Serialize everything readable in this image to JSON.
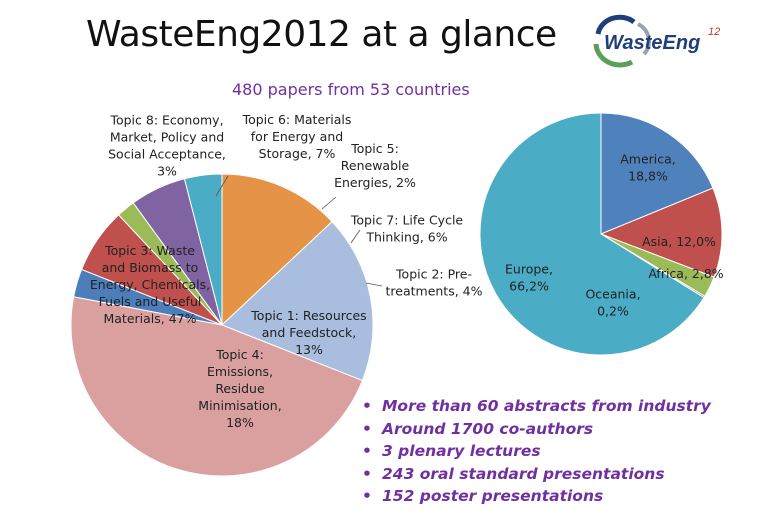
{
  "page": {
    "title": "WasteEng2012 at a glance",
    "subtitle": "480 papers from 53 countries",
    "logo": {
      "name": "WasteEng",
      "superscript": "12"
    },
    "bullets": [
      "More than 60 abstracts from industry",
      "Around 1700 co-authors",
      "3 plenary lectures",
      "243 oral standard presentations",
      "152 poster presentations"
    ],
    "bullet_symbol": "•"
  },
  "chart_data": [
    {
      "type": "pie",
      "title": "",
      "slices": [
        {
          "label": [
            "Topic 1: Resources",
            "and Feedstock,",
            "13%"
          ],
          "value": 13,
          "color": "#e59447"
        },
        {
          "label": [
            "Topic 4:",
            "Emissions,",
            "Residue",
            "Minimisation,",
            "18%"
          ],
          "value": 18,
          "color": "#a9bddf"
        },
        {
          "label": [
            "Topic 3: Waste",
            "and Biomass to",
            "Energy, Chemicals,",
            "Fuels and Useful",
            "Materials, 47%"
          ],
          "value": 47,
          "color": "#d9a09f"
        },
        {
          "label": [
            "Topic 8: Economy,",
            "Market, Policy and",
            "Social Acceptance,",
            "3%"
          ],
          "value": 3,
          "color": "#4d7ebc"
        },
        {
          "label": [
            "Topic 6: Materials",
            "for Energy and",
            "Storage, 7%"
          ],
          "value": 7,
          "color": "#c0504d"
        },
        {
          "label": [
            "Topic 5:",
            "Renewable",
            "Energies, 2%"
          ],
          "value": 2,
          "color": "#9bbb59"
        },
        {
          "label": [
            "Topic 7: Life Cycle",
            "Thinking, 6%"
          ],
          "value": 6,
          "color": "#8064a2"
        },
        {
          "label": [
            "Topic 2: Pre-",
            "treatments, 4%"
          ],
          "value": 4,
          "color": "#4bacc6"
        }
      ]
    },
    {
      "type": "pie",
      "title": "",
      "slices": [
        {
          "label": [
            "America,",
            "18,8%"
          ],
          "value": 18.8,
          "color": "#4f81bd"
        },
        {
          "label": [
            "Asia, 12,0%"
          ],
          "value": 12.0,
          "color": "#c0504d"
        },
        {
          "label": [
            "Africa, 2,8%"
          ],
          "value": 2.8,
          "color": "#9bbb59"
        },
        {
          "label": [
            "Oceania,",
            "0,2%"
          ],
          "value": 0.2,
          "color": "#8064a2"
        },
        {
          "label": [
            "Europe,",
            "66,2%"
          ],
          "value": 66.2,
          "color": "#4bacc6"
        }
      ]
    }
  ]
}
